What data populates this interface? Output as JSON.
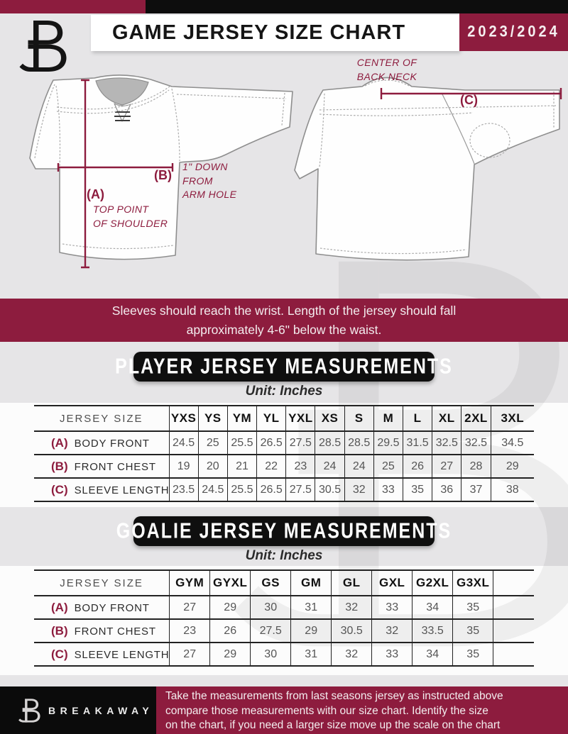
{
  "colors": {
    "maroon": "#8D1C3E",
    "bar_black": "#0D0D0D",
    "page_gray": "#E6E5E7",
    "table_line": "#222222"
  },
  "header": {
    "title": "GAME JERSEY SIZE CHART",
    "season": "2023/2024",
    "logo": "breakaway-b-logo"
  },
  "diagrams": {
    "front": {
      "point_a": "(A)",
      "point_a_caption_line1": "TOP POINT",
      "point_a_caption_line2": "OF SHOULDER",
      "point_b": "(B)",
      "point_b_caption_line1": "1\" DOWN",
      "point_b_caption_line2": "FROM",
      "point_b_caption_line3": "ARM HOLE"
    },
    "back": {
      "point_c": "(C)",
      "caption_line1": "CENTER OF",
      "caption_line2": "BACK NECK"
    }
  },
  "banner": {
    "line1": "Sleeves should reach the wrist. Length of the jersey should fall",
    "line2": "approximately 4-6\" below the waist."
  },
  "player_section": {
    "title": "PLAYER JERSEY MEASUREMENTS",
    "unit": "Unit: Inches",
    "table": {
      "row_header": "JERSEY SIZE",
      "sizes": [
        "YXS",
        "YS",
        "YM",
        "YL",
        "YXL",
        "XS",
        "S",
        "M",
        "L",
        "XL",
        "2XL",
        "3XL"
      ],
      "rows": [
        {
          "key": "(A)",
          "label": "BODY FRONT",
          "values": [
            "24.5",
            "25",
            "25.5",
            "26.5",
            "27.5",
            "28.5",
            "28.5",
            "29.5",
            "31.5",
            "32.5",
            "32.5",
            "34.5"
          ]
        },
        {
          "key": "(B)",
          "label": "FRONT CHEST",
          "values": [
            "19",
            "20",
            "21",
            "22",
            "23",
            "24",
            "24",
            "25",
            "26",
            "27",
            "28",
            "29"
          ]
        },
        {
          "key": "(C)",
          "label": "SLEEVE LENGTH",
          "values": [
            "23.5",
            "24.5",
            "25.5",
            "26.5",
            "27.5",
            "30.5",
            "32",
            "33",
            "35",
            "36",
            "37",
            "38"
          ]
        }
      ]
    }
  },
  "goalie_section": {
    "title": "GOALIE JERSEY MEASUREMENTS",
    "unit": "Unit: Inches",
    "table": {
      "row_header": "JERSEY SIZE",
      "sizes": [
        "GYM",
        "GYXL",
        "GS",
        "GM",
        "GL",
        "GXL",
        "G2XL",
        "G3XL"
      ],
      "rows": [
        {
          "key": "(A)",
          "label": "BODY FRONT",
          "values": [
            "27",
            "29",
            "30",
            "31",
            "32",
            "33",
            "34",
            "35"
          ]
        },
        {
          "key": "(B)",
          "label": "FRONT CHEST",
          "values": [
            "23",
            "26",
            "27.5",
            "29",
            "30.5",
            "32",
            "33.5",
            "35"
          ]
        },
        {
          "key": "(C)",
          "label": "SLEEVE LENGTH",
          "values": [
            "27",
            "29",
            "30",
            "31",
            "32",
            "33",
            "34",
            "35"
          ]
        }
      ]
    }
  },
  "footer": {
    "brand": "BREAKAWAY",
    "note_line1": "Take the measurements from last seasons jersey as instructed above",
    "note_line2": "compare those measurements  with our size chart. Identify the size",
    "note_line3": "on the chart, if you need a larger size move up the scale on the chart"
  }
}
